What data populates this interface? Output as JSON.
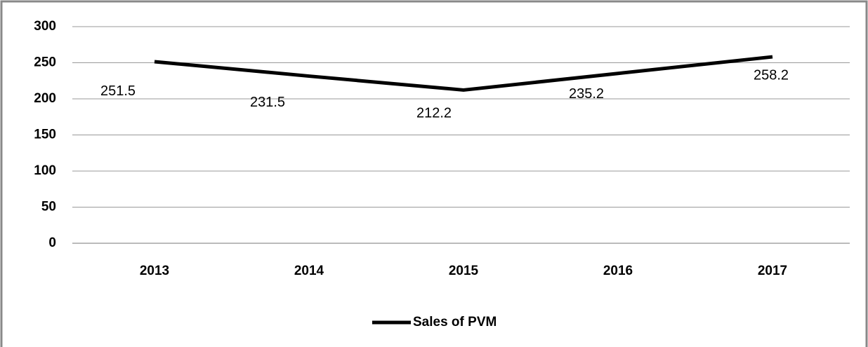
{
  "chart_data": {
    "type": "line",
    "categories": [
      "2013",
      "2014",
      "2015",
      "2016",
      "2017"
    ],
    "series": [
      {
        "name": "Sales of PVM",
        "color": "#000000",
        "values": [
          251.5,
          231.5,
          212.2,
          235.2,
          258.2
        ]
      }
    ],
    "ylim": [
      0,
      300
    ],
    "yticks": [
      0,
      50,
      100,
      150,
      200,
      250,
      300
    ],
    "grid": true,
    "legend": "bottom"
  }
}
